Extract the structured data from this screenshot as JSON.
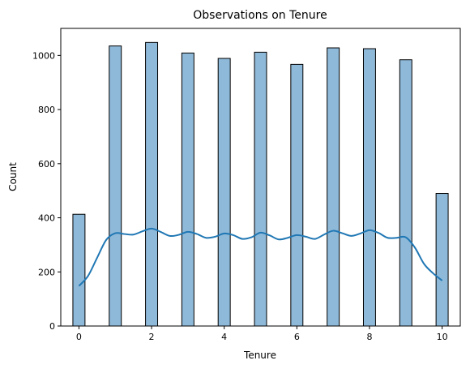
{
  "chart_data": {
    "type": "bar",
    "title": "Observations on Tenure",
    "xlabel": "Tenure",
    "ylabel": "Count",
    "xlim": [
      -0.5,
      10.5
    ],
    "ylim": [
      0,
      1100
    ],
    "grid": false,
    "xticks": [
      0,
      2,
      4,
      6,
      8,
      10
    ],
    "yticks": [
      0,
      200,
      400,
      600,
      800,
      1000
    ],
    "bar_width": 0.3333,
    "bars": [
      {
        "x": 0,
        "value": 413
      },
      {
        "x": 1,
        "value": 1035
      },
      {
        "x": 2,
        "value": 1048
      },
      {
        "x": 3,
        "value": 1009
      },
      {
        "x": 4,
        "value": 989
      },
      {
        "x": 5,
        "value": 1012
      },
      {
        "x": 6,
        "value": 967
      },
      {
        "x": 7,
        "value": 1028
      },
      {
        "x": 8,
        "value": 1025
      },
      {
        "x": 9,
        "value": 984
      },
      {
        "x": 10,
        "value": 490
      }
    ],
    "kde": {
      "x": [
        0,
        0.25,
        0.5,
        0.75,
        1,
        1.25,
        1.5,
        1.75,
        2,
        2.25,
        2.5,
        2.75,
        3,
        3.25,
        3.5,
        3.75,
        4,
        4.25,
        4.5,
        4.75,
        5,
        5.25,
        5.5,
        5.75,
        6,
        6.25,
        6.5,
        6.75,
        7,
        7.25,
        7.5,
        7.75,
        8,
        8.25,
        8.5,
        8.75,
        9,
        9.25,
        9.5,
        9.75,
        10
      ],
      "y": [
        148,
        185,
        252,
        318,
        343,
        340,
        338,
        350,
        360,
        348,
        333,
        337,
        348,
        340,
        326,
        330,
        342,
        336,
        322,
        328,
        345,
        335,
        320,
        326,
        336,
        330,
        322,
        338,
        352,
        343,
        333,
        342,
        354,
        344,
        326,
        326,
        328,
        290,
        230,
        195,
        168
      ],
      "color": "#1f77b4"
    },
    "bar_fill": "#8fb9d8",
    "bar_edge": "#000000"
  }
}
